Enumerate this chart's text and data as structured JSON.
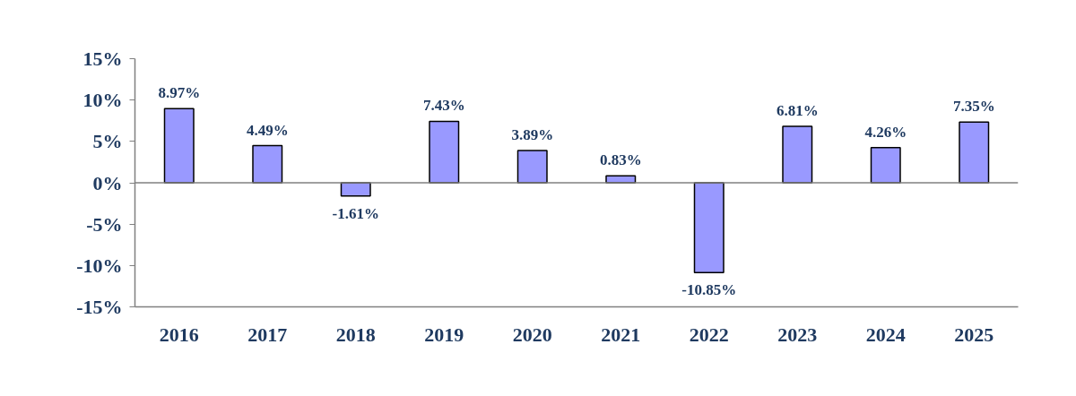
{
  "chart_data": {
    "type": "bar",
    "categories": [
      "2016",
      "2017",
      "2018",
      "2019",
      "2020",
      "2021",
      "2022",
      "2023",
      "2024",
      "2025"
    ],
    "values": [
      8.97,
      4.49,
      -1.61,
      7.43,
      3.89,
      0.83,
      -10.85,
      6.81,
      4.26,
      7.35
    ],
    "value_labels": [
      "8.97%",
      "4.49%",
      "-1.61%",
      "7.43%",
      "3.89%",
      "0.83%",
      "-10.85%",
      "6.81%",
      "4.26%",
      "7.35%"
    ],
    "color": "#9999ff",
    "ylim": [
      -15,
      15
    ],
    "yticks": [
      {
        "value": -15,
        "label": "-15%"
      },
      {
        "value": -10,
        "label": "-10%"
      },
      {
        "value": -5,
        "label": "-5%"
      },
      {
        "value": 0,
        "label": "0%"
      },
      {
        "value": 5,
        "label": "5%"
      },
      {
        "value": 10,
        "label": "10%"
      },
      {
        "value": 15,
        "label": "15%"
      }
    ],
    "ref_lines": [
      {
        "axis": "y",
        "value": 0,
        "color": "#808080"
      }
    ]
  }
}
